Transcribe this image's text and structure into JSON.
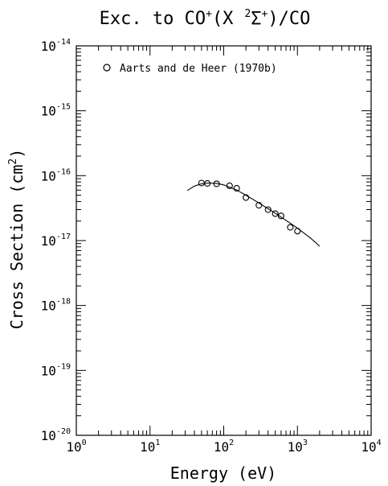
{
  "chart_data": {
    "type": "scatter",
    "title": "Exc. to CO",
    "title_sup": "+",
    "title_mid": "(X",
    "title_state_sup": "2",
    "title_state": "Σ",
    "title_state_sup2": "+",
    "title_end": ")/CO",
    "xlabel": "Energy (eV)",
    "ylabel": "Cross Section (cm",
    "ylabel_sup": "2",
    "ylabel_end": ")",
    "xscale": "log",
    "yscale": "log",
    "xlim": [
      1,
      10000
    ],
    "ylim": [
      1e-20,
      1e-14
    ],
    "x_ticks": [
      {
        "base": "10",
        "exp": "0",
        "value": 1
      },
      {
        "base": "10",
        "exp": "1",
        "value": 10
      },
      {
        "base": "10",
        "exp": "2",
        "value": 100
      },
      {
        "base": "10",
        "exp": "3",
        "value": 1000
      },
      {
        "base": "10",
        "exp": "4",
        "value": 10000
      }
    ],
    "y_ticks": [
      {
        "base": "10",
        "exp": "-14",
        "value": 1e-14
      },
      {
        "base": "10",
        "exp": "-15",
        "value": 1e-15
      },
      {
        "base": "10",
        "exp": "-16",
        "value": 1e-16
      },
      {
        "base": "10",
        "exp": "-17",
        "value": 1e-17
      },
      {
        "base": "10",
        "exp": "-18",
        "value": 1e-18
      },
      {
        "base": "10",
        "exp": "-19",
        "value": 1e-19
      },
      {
        "base": "10",
        "exp": "-20",
        "value": 1e-20
      }
    ],
    "legend": {
      "label": "Aarts and de Heer (1970b)",
      "position": "top-left",
      "marker": "circle"
    },
    "series": [
      {
        "name": "Aarts and de Heer (1970b)",
        "marker": "circle",
        "x": [
          50,
          60,
          80,
          120,
          150,
          200,
          300,
          400,
          500,
          600,
          800,
          1000
        ],
        "y": [
          7.7e-17,
          7.6e-17,
          7.5e-17,
          7e-17,
          6.4e-17,
          4.6e-17,
          3.5e-17,
          3e-17,
          2.6e-17,
          2.4e-17,
          1.6e-17,
          1.4e-17
        ]
      },
      {
        "name": "",
        "type": "line",
        "x": [
          32,
          40,
          50,
          60,
          80,
          100,
          150,
          200,
          300,
          400,
          500,
          600,
          800,
          1000,
          1500,
          2000
        ],
        "y": [
          5.9e-17,
          6.9e-17,
          7.5e-17,
          7.7e-17,
          7.6e-17,
          7.2e-17,
          6e-17,
          5e-17,
          3.8e-17,
          3.1e-17,
          2.65e-17,
          2.3e-17,
          1.85e-17,
          1.55e-17,
          1.1e-17,
          8.2e-18
        ]
      }
    ],
    "grid": false
  }
}
